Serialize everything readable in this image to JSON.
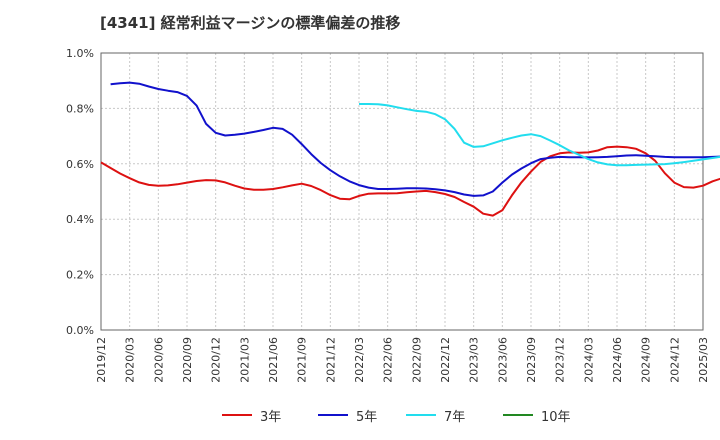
{
  "chart_data": {
    "type": "line",
    "title": "[4341]  経常利益マージンの標準偏差の推移",
    "xlabel": "",
    "ylabel": "",
    "ylim": [
      0,
      1.0
    ],
    "y_ticks": [
      "0.0%",
      "0.2%",
      "0.4%",
      "0.6%",
      "0.8%",
      "1.0%"
    ],
    "x_ticks": [
      "2019/12",
      "2020/03",
      "2020/06",
      "2020/09",
      "2020/12",
      "2021/03",
      "2021/06",
      "2021/09",
      "2021/12",
      "2022/03",
      "2022/06",
      "2022/09",
      "2022/12",
      "2023/03",
      "2023/06",
      "2023/09",
      "2023/12",
      "2024/03",
      "2024/06",
      "2024/09",
      "2024/12",
      "2025/03"
    ],
    "grid": true,
    "legend_position": "bottom",
    "series": [
      {
        "name": "3年",
        "color": "#dd1111",
        "values": [
          [
            "2019/12",
            0.605
          ],
          [
            "2020/01",
            0.585
          ],
          [
            "2020/02",
            0.565
          ],
          [
            "2020/03",
            0.548
          ],
          [
            "2020/04",
            0.533
          ],
          [
            "2020/05",
            0.524
          ],
          [
            "2020/06",
            0.521
          ],
          [
            "2020/07",
            0.522
          ],
          [
            "2020/08",
            0.526
          ],
          [
            "2020/09",
            0.532
          ],
          [
            "2020/10",
            0.538
          ],
          [
            "2020/11",
            0.541
          ],
          [
            "2020/12",
            0.54
          ],
          [
            "2021/01",
            0.533
          ],
          [
            "2021/02",
            0.521
          ],
          [
            "2021/03",
            0.511
          ],
          [
            "2021/04",
            0.506
          ],
          [
            "2021/05",
            0.506
          ],
          [
            "2021/06",
            0.509
          ],
          [
            "2021/07",
            0.515
          ],
          [
            "2021/08",
            0.522
          ],
          [
            "2021/09",
            0.528
          ],
          [
            "2021/10",
            0.52
          ],
          [
            "2021/11",
            0.505
          ],
          [
            "2021/12",
            0.487
          ],
          [
            "2022/01",
            0.474
          ],
          [
            "2022/02",
            0.472
          ],
          [
            "2022/03",
            0.484
          ],
          [
            "2022/04",
            0.492
          ],
          [
            "2022/05",
            0.493
          ],
          [
            "2022/06",
            0.493
          ],
          [
            "2022/07",
            0.494
          ],
          [
            "2022/08",
            0.497
          ],
          [
            "2022/09",
            0.5
          ],
          [
            "2022/10",
            0.502
          ],
          [
            "2022/11",
            0.498
          ],
          [
            "2022/12",
            0.491
          ],
          [
            "2023/01",
            0.48
          ],
          [
            "2023/02",
            0.462
          ],
          [
            "2023/03",
            0.445
          ],
          [
            "2023/04",
            0.42
          ],
          [
            "2023/05",
            0.413
          ],
          [
            "2023/06",
            0.432
          ],
          [
            "2023/07",
            0.486
          ],
          [
            "2023/08",
            0.533
          ],
          [
            "2023/09",
            0.572
          ],
          [
            "2023/10",
            0.607
          ],
          [
            "2023/11",
            0.627
          ],
          [
            "2023/12",
            0.638
          ],
          [
            "2024/01",
            0.641
          ],
          [
            "2024/02",
            0.64
          ],
          [
            "2024/03",
            0.641
          ],
          [
            "2024/04",
            0.648
          ],
          [
            "2024/05",
            0.66
          ],
          [
            "2024/06",
            0.662
          ],
          [
            "2024/07",
            0.66
          ],
          [
            "2024/08",
            0.654
          ],
          [
            "2024/09",
            0.638
          ],
          [
            "2024/10",
            0.611
          ],
          [
            "2024/11",
            0.566
          ],
          [
            "2024/12",
            0.532
          ],
          [
            "2025/01",
            0.516
          ],
          [
            "2025/02",
            0.514
          ],
          [
            "2025/03",
            0.521
          ],
          [
            "2025/04",
            0.537
          ],
          [
            "2025/05",
            0.548
          ],
          [
            "2025/06",
            0.572
          ]
        ]
      },
      {
        "name": "5年",
        "color": "#1111cc",
        "values": [
          [
            "2020/01",
            0.887
          ],
          [
            "2020/02",
            0.891
          ],
          [
            "2020/03",
            0.893
          ],
          [
            "2020/04",
            0.889
          ],
          [
            "2020/05",
            0.879
          ],
          [
            "2020/06",
            0.87
          ],
          [
            "2020/07",
            0.864
          ],
          [
            "2020/08",
            0.859
          ],
          [
            "2020/09",
            0.845
          ],
          [
            "2020/10",
            0.81
          ],
          [
            "2020/11",
            0.744
          ],
          [
            "2020/12",
            0.712
          ],
          [
            "2021/01",
            0.702
          ],
          [
            "2021/02",
            0.705
          ],
          [
            "2021/03",
            0.709
          ],
          [
            "2021/04",
            0.715
          ],
          [
            "2021/05",
            0.722
          ],
          [
            "2021/06",
            0.73
          ],
          [
            "2021/07",
            0.726
          ],
          [
            "2021/08",
            0.705
          ],
          [
            "2021/09",
            0.671
          ],
          [
            "2021/10",
            0.635
          ],
          [
            "2021/11",
            0.603
          ],
          [
            "2021/12",
            0.577
          ],
          [
            "2022/01",
            0.555
          ],
          [
            "2022/02",
            0.537
          ],
          [
            "2022/03",
            0.523
          ],
          [
            "2022/04",
            0.514
          ],
          [
            "2022/05",
            0.509
          ],
          [
            "2022/06",
            0.509
          ],
          [
            "2022/07",
            0.51
          ],
          [
            "2022/08",
            0.512
          ],
          [
            "2022/09",
            0.512
          ],
          [
            "2022/10",
            0.511
          ],
          [
            "2022/11",
            0.508
          ],
          [
            "2022/12",
            0.504
          ],
          [
            "2023/01",
            0.498
          ],
          [
            "2023/02",
            0.489
          ],
          [
            "2023/03",
            0.484
          ],
          [
            "2023/04",
            0.486
          ],
          [
            "2023/05",
            0.5
          ],
          [
            "2023/06",
            0.532
          ],
          [
            "2023/07",
            0.561
          ],
          [
            "2023/08",
            0.583
          ],
          [
            "2023/09",
            0.602
          ],
          [
            "2023/10",
            0.617
          ],
          [
            "2023/11",
            0.622
          ],
          [
            "2023/12",
            0.625
          ],
          [
            "2024/01",
            0.624
          ],
          [
            "2024/02",
            0.624
          ],
          [
            "2024/03",
            0.623
          ],
          [
            "2024/04",
            0.624
          ],
          [
            "2024/05",
            0.625
          ],
          [
            "2024/06",
            0.627
          ],
          [
            "2024/07",
            0.63
          ],
          [
            "2024/08",
            0.631
          ],
          [
            "2024/09",
            0.629
          ],
          [
            "2024/10",
            0.627
          ],
          [
            "2024/11",
            0.625
          ],
          [
            "2024/12",
            0.624
          ],
          [
            "2025/01",
            0.624
          ],
          [
            "2025/02",
            0.624
          ],
          [
            "2025/03",
            0.624
          ],
          [
            "2025/04",
            0.625
          ],
          [
            "2025/05",
            0.626
          ],
          [
            "2025/06",
            0.628
          ]
        ]
      },
      {
        "name": "7年",
        "color": "#22ddee",
        "values": [
          [
            "2022/03",
            0.816
          ],
          [
            "2022/04",
            0.816
          ],
          [
            "2022/05",
            0.815
          ],
          [
            "2022/06",
            0.811
          ],
          [
            "2022/07",
            0.804
          ],
          [
            "2022/08",
            0.797
          ],
          [
            "2022/09",
            0.791
          ],
          [
            "2022/10",
            0.788
          ],
          [
            "2022/11",
            0.779
          ],
          [
            "2022/12",
            0.761
          ],
          [
            "2023/01",
            0.726
          ],
          [
            "2023/02",
            0.676
          ],
          [
            "2023/03",
            0.661
          ],
          [
            "2023/04",
            0.663
          ],
          [
            "2023/05",
            0.674
          ],
          [
            "2023/06",
            0.685
          ],
          [
            "2023/07",
            0.694
          ],
          [
            "2023/08",
            0.702
          ],
          [
            "2023/09",
            0.707
          ],
          [
            "2023/10",
            0.7
          ],
          [
            "2023/11",
            0.684
          ],
          [
            "2023/12",
            0.667
          ],
          [
            "2024/01",
            0.648
          ],
          [
            "2024/02",
            0.633
          ],
          [
            "2024/03",
            0.617
          ],
          [
            "2024/04",
            0.605
          ],
          [
            "2024/05",
            0.598
          ],
          [
            "2024/06",
            0.595
          ],
          [
            "2024/07",
            0.595
          ],
          [
            "2024/08",
            0.596
          ],
          [
            "2024/09",
            0.597
          ],
          [
            "2024/10",
            0.598
          ],
          [
            "2024/11",
            0.599
          ],
          [
            "2024/12",
            0.602
          ],
          [
            "2025/01",
            0.606
          ],
          [
            "2025/02",
            0.611
          ],
          [
            "2025/03",
            0.616
          ],
          [
            "2025/04",
            0.621
          ],
          [
            "2025/05",
            0.626
          ],
          [
            "2025/06",
            0.63
          ]
        ]
      },
      {
        "name": "10年",
        "color": "#228822",
        "values": []
      }
    ]
  }
}
